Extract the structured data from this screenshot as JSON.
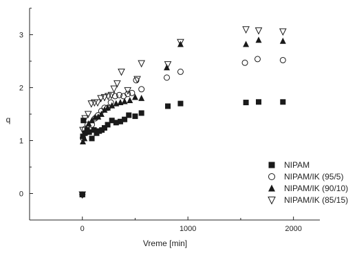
{
  "chart_data": {
    "type": "scatter",
    "title": "",
    "xlabel": "Vreme [min]",
    "ylabel": "q",
    "xlim": [
      -500,
      2250
    ],
    "ylim": [
      -0.5,
      3.5
    ],
    "x_ticks": [
      0,
      1000,
      2000
    ],
    "y_ticks": [
      0,
      1,
      2,
      3
    ],
    "grid": false,
    "legend_position": "bottom-right",
    "series": [
      {
        "name": "NIPAM",
        "marker": "filled-square",
        "color": "#1a1a1a",
        "points": [
          [
            0,
            -0.02
          ],
          [
            5,
            1.08
          ],
          [
            10,
            1.38
          ],
          [
            25,
            1.14
          ],
          [
            45,
            1.2
          ],
          [
            65,
            1.16
          ],
          [
            90,
            1.04
          ],
          [
            110,
            1.2
          ],
          [
            135,
            1.14
          ],
          [
            160,
            1.18
          ],
          [
            185,
            1.2
          ],
          [
            210,
            1.24
          ],
          [
            240,
            1.3
          ],
          [
            280,
            1.38
          ],
          [
            320,
            1.34
          ],
          [
            360,
            1.36
          ],
          [
            400,
            1.4
          ],
          [
            440,
            1.48
          ],
          [
            500,
            1.46
          ],
          [
            560,
            1.52
          ],
          [
            810,
            1.65
          ],
          [
            930,
            1.7
          ],
          [
            1550,
            1.72
          ],
          [
            1670,
            1.73
          ],
          [
            1900,
            1.73
          ]
        ]
      },
      {
        "name": "NIPAM/IK (95/5)",
        "marker": "open-circle",
        "color": "#1a1a1a",
        "points": [
          [
            0,
            -0.02
          ],
          [
            5,
            1.05
          ],
          [
            25,
            1.22
          ],
          [
            50,
            1.3
          ],
          [
            90,
            1.3
          ],
          [
            120,
            1.42
          ],
          [
            150,
            1.48
          ],
          [
            180,
            1.56
          ],
          [
            210,
            1.62
          ],
          [
            240,
            1.62
          ],
          [
            270,
            1.72
          ],
          [
            310,
            1.84
          ],
          [
            350,
            1.86
          ],
          [
            390,
            1.84
          ],
          [
            430,
            1.88
          ],
          [
            470,
            1.9
          ],
          [
            510,
            2.14
          ],
          [
            560,
            1.97
          ],
          [
            800,
            2.19
          ],
          [
            930,
            2.3
          ],
          [
            1540,
            2.47
          ],
          [
            1660,
            2.54
          ],
          [
            1900,
            2.52
          ]
        ]
      },
      {
        "name": "NIPAM/IK (90/10)",
        "marker": "filled-triangle",
        "color": "#1a1a1a",
        "points": [
          [
            0,
            -0.02
          ],
          [
            5,
            0.98
          ],
          [
            20,
            1.04
          ],
          [
            40,
            1.18
          ],
          [
            60,
            1.32
          ],
          [
            90,
            1.38
          ],
          [
            120,
            1.44
          ],
          [
            150,
            1.45
          ],
          [
            180,
            1.5
          ],
          [
            210,
            1.58
          ],
          [
            240,
            1.62
          ],
          [
            280,
            1.66
          ],
          [
            320,
            1.7
          ],
          [
            360,
            1.72
          ],
          [
            400,
            1.74
          ],
          [
            450,
            1.76
          ],
          [
            500,
            1.82
          ],
          [
            560,
            1.8
          ],
          [
            800,
            2.38
          ],
          [
            930,
            2.82
          ],
          [
            1550,
            2.82
          ],
          [
            1670,
            2.9
          ],
          [
            1900,
            2.88
          ]
        ]
      },
      {
        "name": "NIPAM/IK (85/15)",
        "marker": "open-triangle-down",
        "color": "#1a1a1a",
        "points": [
          [
            0,
            -0.02
          ],
          [
            5,
            1.2
          ],
          [
            25,
            1.42
          ],
          [
            55,
            1.5
          ],
          [
            85,
            1.7
          ],
          [
            115,
            1.72
          ],
          [
            145,
            1.72
          ],
          [
            175,
            1.8
          ],
          [
            210,
            1.82
          ],
          [
            245,
            1.84
          ],
          [
            275,
            1.86
          ],
          [
            300,
            1.98
          ],
          [
            330,
            2.08
          ],
          [
            370,
            2.3
          ],
          [
            430,
            1.95
          ],
          [
            520,
            2.16
          ],
          [
            560,
            2.46
          ],
          [
            810,
            2.44
          ],
          [
            930,
            2.86
          ],
          [
            1550,
            3.1
          ],
          [
            1670,
            3.08
          ],
          [
            1900,
            3.06
          ]
        ]
      }
    ]
  }
}
